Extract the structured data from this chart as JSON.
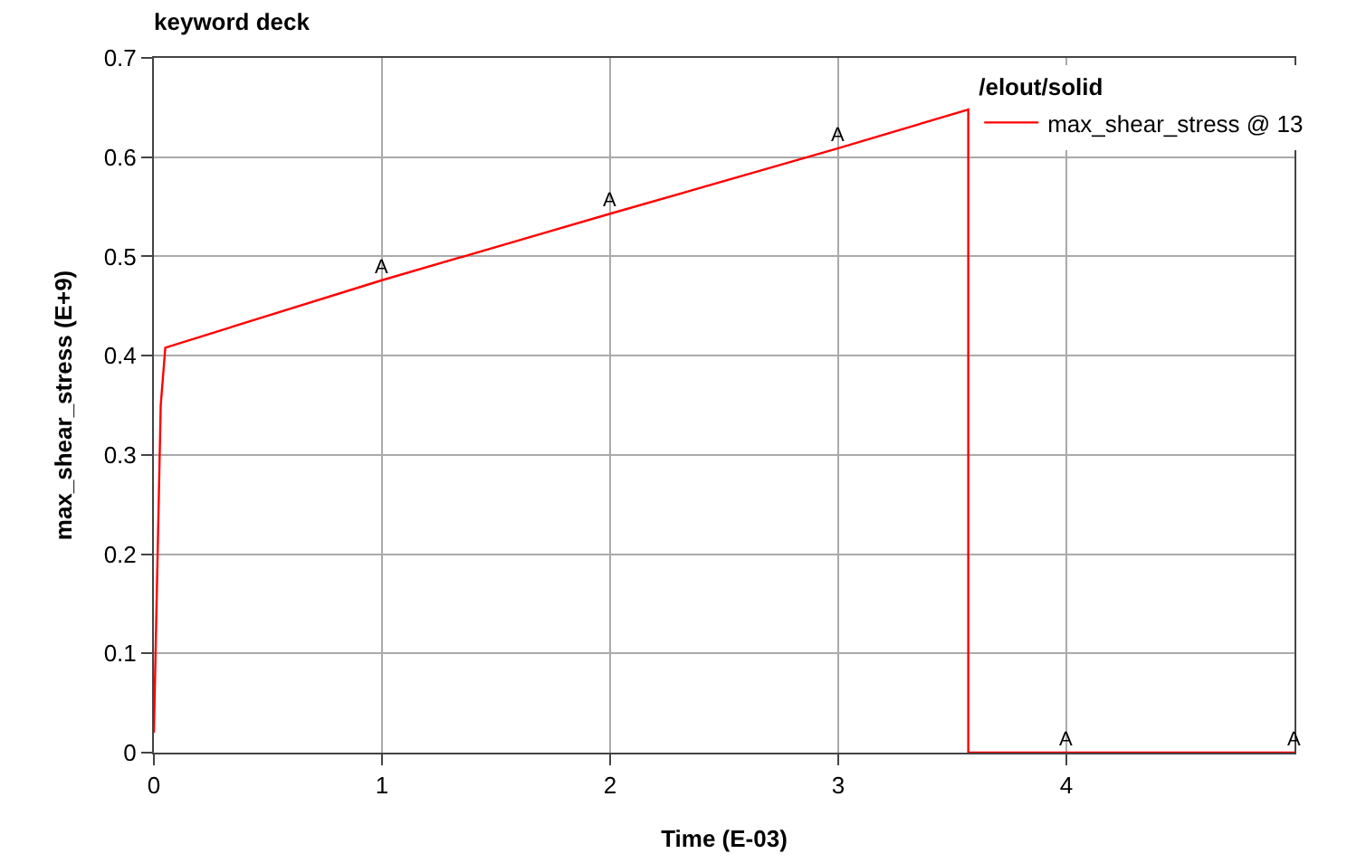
{
  "chart_data": {
    "type": "line",
    "title": "keyword deck",
    "xlabel": "Time (E-03)",
    "ylabel": "max_shear_stress (E+9)",
    "legend_title": "/elout/solid",
    "x": [
      0,
      0.03,
      0.05,
      1,
      2,
      3,
      3.57,
      3.57,
      4,
      5
    ],
    "series": [
      {
        "name": "max_shear_stress @ 13",
        "color": "#ff0000",
        "values": [
          0.02,
          0.35,
          0.408,
          0.476,
          0.543,
          0.609,
          0.648,
          0,
          0,
          0
        ]
      }
    ],
    "annotations": [
      {
        "text": "A",
        "x": 1,
        "y": 0.476
      },
      {
        "text": "A",
        "x": 2,
        "y": 0.543
      },
      {
        "text": "A",
        "x": 3,
        "y": 0.609
      },
      {
        "text": "A",
        "x": 4,
        "y": 0
      },
      {
        "text": "A",
        "x": 5,
        "y": 0
      }
    ],
    "xlim": [
      0,
      5
    ],
    "xticks": [
      0,
      1,
      2,
      3,
      4
    ],
    "ylim": [
      0,
      0.7
    ],
    "yticks": [
      0,
      0.1,
      0.2,
      0.3,
      0.4,
      0.5,
      0.6,
      0.7
    ],
    "grid": true,
    "legend": "top right",
    "line_style": "solid"
  }
}
